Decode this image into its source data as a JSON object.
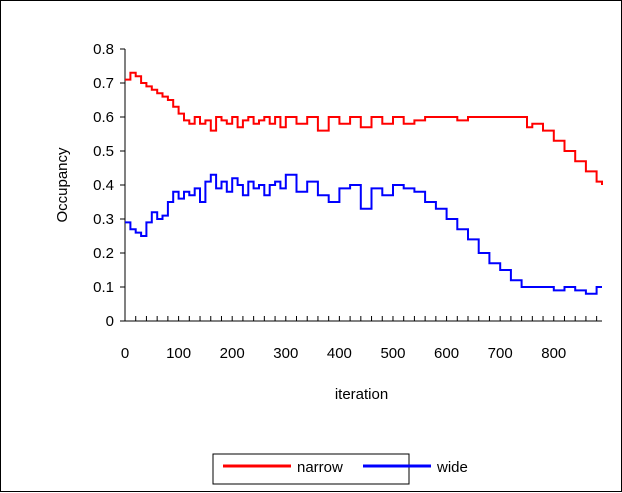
{
  "chart_data": {
    "type": "line",
    "title": "",
    "xlabel": "iteration",
    "ylabel": "Occupancy",
    "xlim": [
      0,
      890
    ],
    "ylim": [
      0,
      0.8
    ],
    "x_ticks": [
      0,
      100,
      200,
      300,
      400,
      500,
      600,
      700,
      800
    ],
    "x_tick_labels": [
      "0",
      "100",
      "200",
      "300",
      "400",
      "500",
      "600",
      "700",
      "800"
    ],
    "x_minor_step": 20,
    "y_ticks": [
      0,
      0.1,
      0.2,
      0.3,
      0.4,
      0.5,
      0.6,
      0.7,
      0.8
    ],
    "y_tick_labels": [
      "0",
      "0.1",
      "0.2",
      "0.3",
      "0.4",
      "0.5",
      "0.6",
      "0.7",
      "0.8"
    ],
    "grid": false,
    "legend_position": "bottom",
    "series": [
      {
        "name": "narrow",
        "color": "#ff0000",
        "x": [
          0,
          10,
          20,
          30,
          40,
          50,
          60,
          70,
          80,
          90,
          100,
          110,
          120,
          130,
          140,
          150,
          160,
          170,
          180,
          190,
          200,
          210,
          220,
          230,
          240,
          250,
          260,
          270,
          280,
          290,
          300,
          320,
          340,
          360,
          380,
          400,
          420,
          440,
          460,
          480,
          500,
          520,
          540,
          560,
          580,
          600,
          620,
          640,
          660,
          680,
          700,
          720,
          740,
          750,
          760,
          780,
          800,
          820,
          840,
          860,
          880,
          890
        ],
        "y": [
          0.71,
          0.73,
          0.72,
          0.7,
          0.69,
          0.68,
          0.67,
          0.66,
          0.65,
          0.63,
          0.61,
          0.59,
          0.58,
          0.6,
          0.58,
          0.59,
          0.56,
          0.6,
          0.59,
          0.58,
          0.6,
          0.57,
          0.59,
          0.6,
          0.58,
          0.59,
          0.6,
          0.58,
          0.6,
          0.57,
          0.6,
          0.58,
          0.6,
          0.56,
          0.6,
          0.58,
          0.6,
          0.57,
          0.6,
          0.58,
          0.6,
          0.58,
          0.59,
          0.6,
          0.6,
          0.6,
          0.59,
          0.6,
          0.6,
          0.6,
          0.6,
          0.6,
          0.6,
          0.57,
          0.58,
          0.56,
          0.53,
          0.5,
          0.47,
          0.44,
          0.41,
          0.4
        ]
      },
      {
        "name": "wide",
        "color": "#0000ff",
        "x": [
          0,
          10,
          20,
          30,
          40,
          50,
          60,
          70,
          80,
          90,
          100,
          110,
          120,
          130,
          140,
          150,
          160,
          170,
          180,
          190,
          200,
          210,
          220,
          230,
          240,
          250,
          260,
          270,
          280,
          290,
          300,
          320,
          340,
          360,
          380,
          400,
          420,
          440,
          460,
          480,
          500,
          520,
          540,
          560,
          580,
          600,
          620,
          640,
          660,
          680,
          700,
          720,
          740,
          760,
          780,
          800,
          820,
          840,
          860,
          880,
          890
        ],
        "y": [
          0.29,
          0.27,
          0.26,
          0.25,
          0.29,
          0.32,
          0.3,
          0.31,
          0.35,
          0.38,
          0.36,
          0.38,
          0.37,
          0.39,
          0.35,
          0.41,
          0.43,
          0.39,
          0.41,
          0.38,
          0.42,
          0.4,
          0.37,
          0.41,
          0.39,
          0.4,
          0.37,
          0.4,
          0.41,
          0.39,
          0.43,
          0.38,
          0.41,
          0.37,
          0.35,
          0.39,
          0.4,
          0.33,
          0.39,
          0.37,
          0.4,
          0.39,
          0.38,
          0.35,
          0.33,
          0.3,
          0.27,
          0.24,
          0.2,
          0.17,
          0.15,
          0.12,
          0.1,
          0.1,
          0.1,
          0.09,
          0.1,
          0.09,
          0.08,
          0.1,
          0.1
        ]
      }
    ]
  }
}
